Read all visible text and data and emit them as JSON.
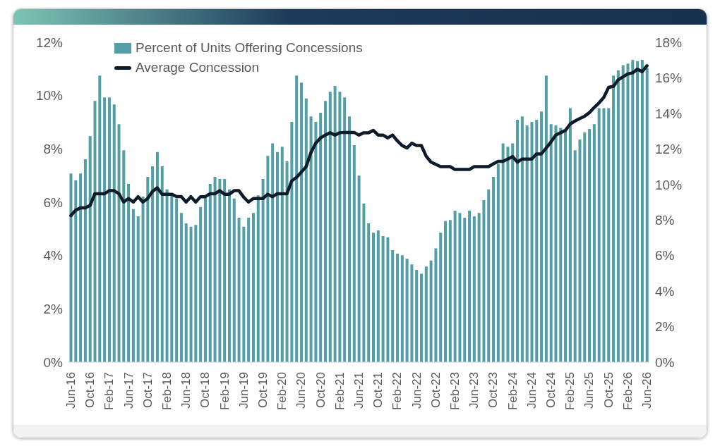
{
  "chart_data": {
    "type": "bar",
    "categories": [
      "Jun-16",
      null,
      null,
      null,
      "Oct-16",
      null,
      null,
      null,
      "Feb-17",
      null,
      null,
      null,
      "Jun-17",
      null,
      null,
      null,
      "Oct-17",
      null,
      null,
      null,
      "Feb-18",
      null,
      null,
      null,
      "Jun-18",
      null,
      null,
      null,
      "Oct-18",
      null,
      null,
      null,
      "Feb-19",
      null,
      null,
      null,
      "Jun-19",
      null,
      null,
      null,
      "Oct-19",
      null,
      null,
      null,
      "Feb-20",
      null,
      null,
      null,
      "Jun-20",
      null,
      null,
      null,
      "Oct-20",
      null,
      null,
      null,
      "Feb-21",
      null,
      null,
      null,
      "Jun-21",
      null,
      null,
      null,
      "Oct-21",
      null,
      null,
      null,
      "Feb-22",
      null,
      null,
      null,
      "Jun-22",
      null,
      null,
      null,
      "Oct-22",
      null,
      null,
      null,
      "Feb-23",
      null,
      null,
      null,
      "Jun-23",
      null,
      null,
      null,
      "Oct-23",
      null,
      null,
      null,
      "Feb-24",
      null,
      null,
      null,
      "Jun-24",
      null,
      null,
      null,
      "Oct-24",
      null,
      null,
      null,
      "Feb-25",
      null,
      null,
      null,
      "Jun-25",
      null,
      null,
      null,
      "Oct-25",
      null,
      null,
      null,
      "Feb-26",
      null,
      null,
      null,
      "Jun-26"
    ],
    "series": [
      {
        "name": "Percent of Units Offering Concessions",
        "color": "#529fa5",
        "values": [
          7.08,
          6.82,
          7.08,
          7.61,
          8.48,
          9.8,
          10.75,
          9.93,
          9.93,
          9.67,
          8.93,
          7.95,
          6.69,
          5.74,
          5.47,
          6.21,
          6.95,
          7.35,
          7.88,
          7.35,
          6.48,
          6.3,
          6.14,
          5.6,
          5.21,
          5.08,
          5.15,
          5.82,
          6.16,
          6.69,
          6.95,
          6.87,
          6.87,
          6.48,
          6.14,
          5.42,
          5.08,
          5.42,
          5.6,
          6.26,
          6.87,
          7.74,
          8.21,
          7.88,
          8.08,
          7.53,
          9.01,
          10.75,
          10.49,
          9.89,
          9.22,
          9.01,
          9.36,
          9.8,
          10.14,
          10.36,
          10.14,
          9.93,
          9.22,
          8.14,
          7.0,
          5.95,
          5.21,
          4.86,
          4.94,
          4.73,
          4.68,
          4.2,
          4.07,
          4.01,
          3.88,
          3.67,
          3.46,
          3.32,
          3.59,
          3.81,
          4.27,
          4.86,
          5.29,
          5.33,
          5.68,
          5.6,
          5.42,
          5.68,
          5.47,
          5.6,
          6.08,
          6.48,
          6.95,
          7.44,
          8.21,
          8.08,
          8.21,
          9.09,
          9.22,
          8.88,
          9.01,
          9.09,
          9.4,
          10.75,
          8.93,
          8.88,
          8.79,
          8.65,
          9.53,
          7.95,
          8.35,
          8.62,
          8.75,
          8.93,
          9.53,
          9.53,
          9.53,
          10.75,
          10.95,
          11.14,
          11.2,
          11.34,
          11.29,
          11.34,
          11.03
        ]
      },
      {
        "name": "Average Concession",
        "type": "line",
        "axis": "y2",
        "color": "#0d1b2a",
        "values": [
          8.25,
          8.55,
          8.68,
          8.68,
          8.82,
          9.48,
          9.48,
          9.48,
          9.65,
          9.65,
          9.48,
          9.01,
          9.21,
          9.01,
          9.31,
          9.01,
          9.21,
          9.61,
          9.81,
          9.45,
          9.45,
          9.45,
          9.32,
          9.32,
          9.01,
          9.31,
          9.01,
          9.31,
          9.31,
          9.48,
          9.48,
          9.65,
          9.45,
          9.45,
          9.65,
          9.65,
          9.28,
          9.01,
          9.21,
          9.21,
          9.21,
          9.45,
          9.31,
          9.48,
          9.48,
          9.48,
          10.2,
          10.4,
          10.69,
          11.0,
          11.79,
          12.32,
          12.62,
          12.78,
          12.91,
          12.78,
          12.91,
          12.93,
          12.93,
          12.93,
          12.78,
          12.91,
          12.91,
          13.04,
          12.78,
          12.78,
          12.62,
          12.78,
          12.45,
          12.19,
          12.05,
          12.32,
          12.19,
          12.19,
          11.59,
          11.26,
          11.13,
          11.0,
          11.0,
          11.0,
          10.84,
          10.84,
          10.84,
          10.84,
          11.0,
          11.0,
          11.0,
          11.0,
          11.16,
          11.3,
          11.3,
          11.43,
          11.57,
          11.26,
          11.43,
          11.43,
          11.43,
          11.72,
          11.72,
          12.05,
          12.39,
          12.78,
          12.91,
          13.04,
          13.4,
          13.57,
          13.71,
          13.84,
          14.04,
          14.33,
          14.59,
          14.9,
          15.46,
          15.52,
          15.89,
          16.05,
          16.22,
          16.28,
          16.48,
          16.35,
          16.68
        ]
      }
    ],
    "ylim": [
      0,
      12
    ],
    "yticks": [
      {
        "value": 0,
        "label": "0%"
      },
      {
        "value": 2,
        "label": "2%"
      },
      {
        "value": 4,
        "label": "4%"
      },
      {
        "value": 6,
        "label": "6%"
      },
      {
        "value": 8,
        "label": "8%"
      },
      {
        "value": 10,
        "label": "10%"
      },
      {
        "value": 12,
        "label": "12%"
      }
    ],
    "y2lim": [
      0,
      18
    ],
    "y2ticks": [
      {
        "value": 0,
        "label": "0%"
      },
      {
        "value": 2,
        "label": "2%"
      },
      {
        "value": 4,
        "label": "4%"
      },
      {
        "value": 6,
        "label": "6%"
      },
      {
        "value": 8,
        "label": "8%"
      },
      {
        "value": 10,
        "label": "10%"
      },
      {
        "value": 12,
        "label": "12%"
      },
      {
        "value": 14,
        "label": "14%"
      },
      {
        "value": 16,
        "label": "16%"
      },
      {
        "value": 18,
        "label": "18%"
      }
    ],
    "legend": "top left",
    "line_style": "solid"
  }
}
